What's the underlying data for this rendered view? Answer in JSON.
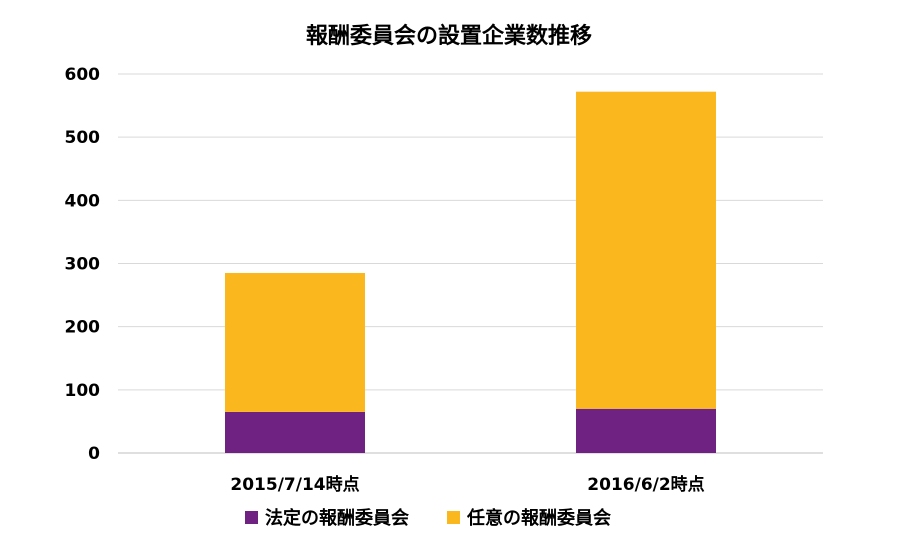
{
  "chart_data": {
    "type": "bar",
    "stacked": true,
    "title": "報酬委員会の設置企業数推移",
    "xlabel": "",
    "ylabel": "",
    "categories": [
      "2015/7/14時点",
      "2016/6/2時点"
    ],
    "ylim": [
      0,
      600
    ],
    "yticks": [
      0,
      100,
      200,
      300,
      400,
      500,
      600
    ],
    "grid": true,
    "legend_position": "bottom",
    "series": [
      {
        "name": "法定の報酬委員会",
        "color": "#6f2282",
        "values": [
          65,
          70
        ]
      },
      {
        "name": "任意の報酬委員会",
        "color": "#fbb81e",
        "values": [
          220,
          502
        ]
      }
    ]
  }
}
